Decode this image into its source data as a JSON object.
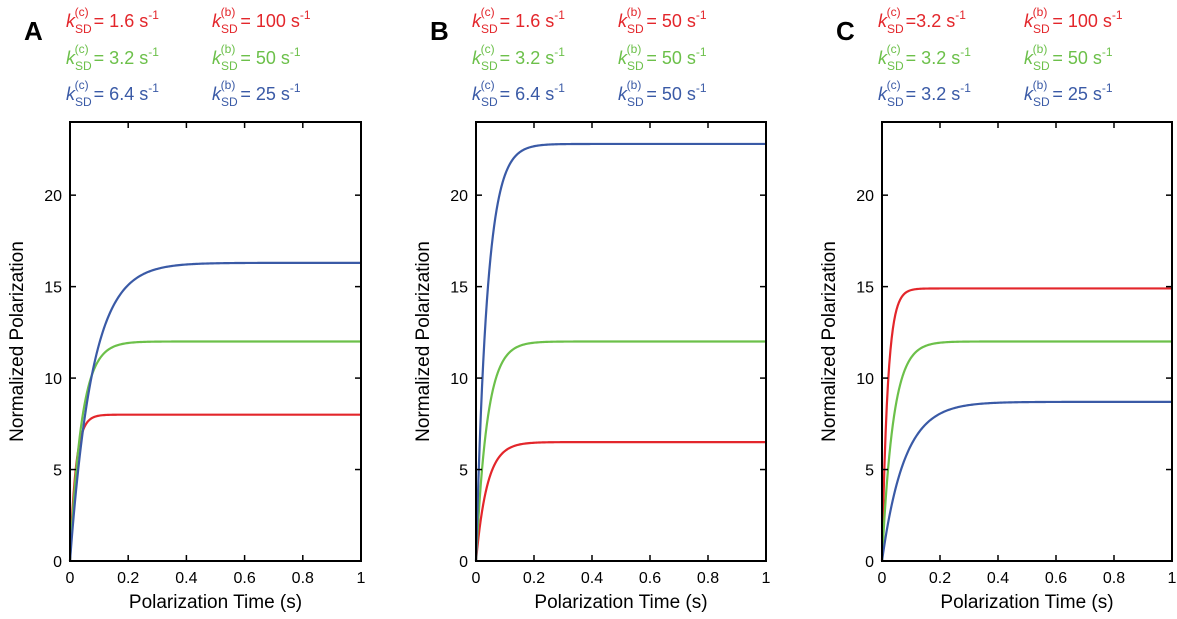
{
  "chart_data": [
    {
      "type": "line",
      "panel_label": "A",
      "xlabel": "Polarization Time (s)",
      "ylabel": "Normalized Polarization",
      "xlim": [
        0,
        1
      ],
      "ylim": [
        0,
        24
      ],
      "xticks": [
        0,
        0.2,
        0.4,
        0.6,
        0.8,
        1
      ],
      "xtick_labels": [
        "0",
        "0.2",
        "0.4",
        "0.6",
        "0.8",
        "1"
      ],
      "yticks": [
        0,
        5,
        10,
        15,
        20
      ],
      "ytick_labels": [
        "0",
        "5",
        "10",
        "15",
        "20"
      ],
      "grid": false,
      "legend_position": "top",
      "series": [
        {
          "color": "#e3262b",
          "rate_left": {
            "sym": "k",
            "sub": "SD",
            "sup": "(c)",
            "text": " = 1.6 s",
            "exp": "-1"
          },
          "rate_right": {
            "sym": "k",
            "sub": "SD",
            "sup": "(b)",
            "text": " = 100 s",
            "exp": "-1"
          },
          "plateau": 8.0,
          "k": 50
        },
        {
          "color": "#6cc04a",
          "rate_left": {
            "sym": "k",
            "sub": "SD",
            "sup": "(c)",
            "text": " = 3.2 s",
            "exp": "-1"
          },
          "rate_right": {
            "sym": "k",
            "sub": "SD",
            "sup": "(b)",
            "text": " = 50 s",
            "exp": "-1"
          },
          "plateau": 12.0,
          "k": 25
        },
        {
          "color": "#3a5aa6",
          "rate_left": {
            "sym": "k",
            "sub": "SD",
            "sup": "(c)",
            "text": " = 6.4 s",
            "exp": "-1"
          },
          "rate_right": {
            "sym": "k",
            "sub": "SD",
            "sup": "(b)",
            "text": " = 25 s",
            "exp": "-1"
          },
          "plateau": 16.3,
          "k": 13
        }
      ]
    },
    {
      "type": "line",
      "panel_label": "B",
      "xlabel": "Polarization Time (s)",
      "ylabel": "Normalized Polarization",
      "xlim": [
        0,
        1
      ],
      "ylim": [
        0,
        24
      ],
      "xticks": [
        0,
        0.2,
        0.4,
        0.6,
        0.8,
        1
      ],
      "xtick_labels": [
        "0",
        "0.2",
        "0.4",
        "0.6",
        "0.8",
        "1"
      ],
      "yticks": [
        0,
        5,
        10,
        15,
        20
      ],
      "ytick_labels": [
        "0",
        "5",
        "10",
        "15",
        "20"
      ],
      "grid": false,
      "legend_position": "top",
      "series": [
        {
          "color": "#e3262b",
          "rate_left": {
            "sym": "k",
            "sub": "SD",
            "sup": "(c)",
            "text": " = 1.6 s",
            "exp": "-1"
          },
          "rate_right": {
            "sym": "k",
            "sub": "SD",
            "sup": "(b)",
            "text": " = 50 s",
            "exp": "-1"
          },
          "plateau": 6.5,
          "k": 26
        },
        {
          "color": "#6cc04a",
          "rate_left": {
            "sym": "k",
            "sub": "SD",
            "sup": "(c)",
            "text": " = 3.2 s",
            "exp": "-1"
          },
          "rate_right": {
            "sym": "k",
            "sub": "SD",
            "sup": "(b)",
            "text": " = 50 s",
            "exp": "-1"
          },
          "plateau": 12.0,
          "k": 26
        },
        {
          "color": "#3a5aa6",
          "rate_left": {
            "sym": "k",
            "sub": "SD",
            "sup": "(c)",
            "text": " = 6.4 s",
            "exp": "-1"
          },
          "rate_right": {
            "sym": "k",
            "sub": "SD",
            "sup": "(b)",
            "text": " = 50 s",
            "exp": "-1"
          },
          "plateau": 22.8,
          "k": 26
        }
      ]
    },
    {
      "type": "line",
      "panel_label": "C",
      "xlabel": "Polarization Time (s)",
      "ylabel": "Normalized Polarization",
      "xlim": [
        0,
        1
      ],
      "ylim": [
        0,
        24
      ],
      "xticks": [
        0,
        0.2,
        0.4,
        0.6,
        0.8,
        1
      ],
      "xtick_labels": [
        "0",
        "0.2",
        "0.4",
        "0.6",
        "0.8",
        "1"
      ],
      "yticks": [
        0,
        5,
        10,
        15,
        20
      ],
      "ytick_labels": [
        "0",
        "5",
        "10",
        "15",
        "20"
      ],
      "grid": false,
      "legend_position": "top",
      "series": [
        {
          "color": "#e3262b",
          "rate_left": {
            "sym": "k",
            "sub": "SD",
            "sup": "(c)",
            "text": " =3.2 s",
            "exp": "-1"
          },
          "rate_right": {
            "sym": "k",
            "sub": "SD",
            "sup": "(b)",
            "text": " = 100 s",
            "exp": "-1"
          },
          "plateau": 14.9,
          "k": 51
        },
        {
          "color": "#6cc04a",
          "rate_left": {
            "sym": "k",
            "sub": "SD",
            "sup": "(c)",
            "text": " = 3.2 s",
            "exp": "-1"
          },
          "rate_right": {
            "sym": "k",
            "sub": "SD",
            "sup": "(b)",
            "text": " = 50 s",
            "exp": "-1"
          },
          "plateau": 12.0,
          "k": 26
        },
        {
          "color": "#3a5aa6",
          "rate_left": {
            "sym": "k",
            "sub": "SD",
            "sup": "(c)",
            "text": " = 3.2 s",
            "exp": "-1"
          },
          "rate_right": {
            "sym": "k",
            "sub": "SD",
            "sup": "(b)",
            "text": " = 25 s",
            "exp": "-1"
          },
          "plateau": 8.7,
          "k": 13
        }
      ]
    }
  ]
}
